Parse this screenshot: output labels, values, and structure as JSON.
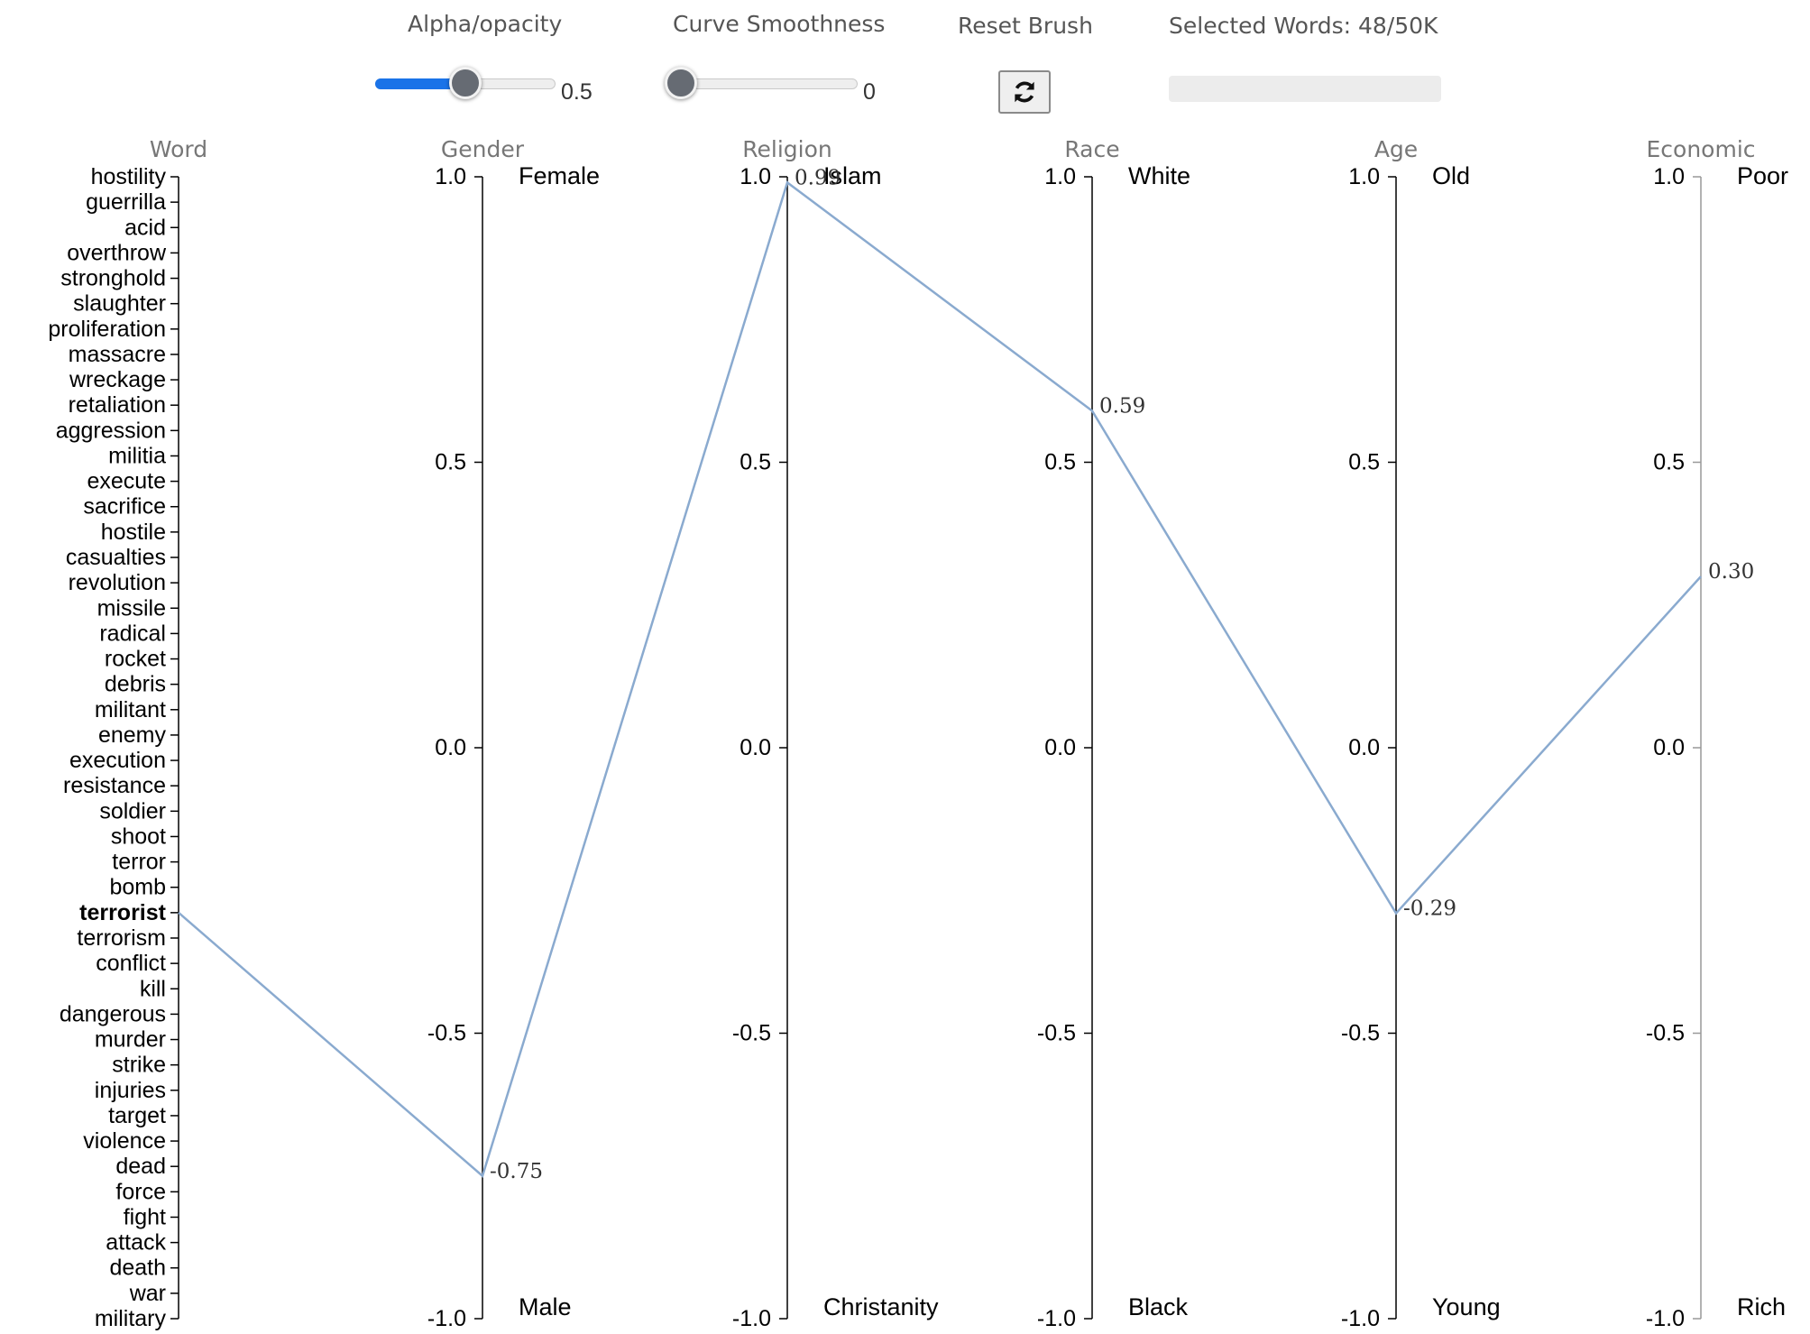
{
  "controls": {
    "alpha_label": "Alpha/opacity",
    "alpha_value": 0.5,
    "alpha_display": "0.5",
    "smooth_label": "Curve Smoothness",
    "smooth_value": 0,
    "smooth_display": "0",
    "reset_label": "Reset Brush",
    "reset_icon": "refresh-icon",
    "selected_label": "Selected Words: 48/50K",
    "selected_fraction": 0
  },
  "line_color": "#8aaacf",
  "chart_data": {
    "type": "parallel-coordinates",
    "word_axis": {
      "title": "Word",
      "words": [
        "hostility",
        "guerrilla",
        "acid",
        "overthrow",
        "stronghold",
        "slaughter",
        "proliferation",
        "massacre",
        "wreckage",
        "retaliation",
        "aggression",
        "militia",
        "execute",
        "sacrifice",
        "hostile",
        "casualties",
        "revolution",
        "missile",
        "radical",
        "rocket",
        "debris",
        "militant",
        "enemy",
        "execution",
        "resistance",
        "soldier",
        "shoot",
        "terror",
        "bomb",
        "terrorist",
        "terrorism",
        "conflict",
        "kill",
        "dangerous",
        "murder",
        "strike",
        "injuries",
        "target",
        "violence",
        "dead",
        "force",
        "fight",
        "attack",
        "death",
        "war",
        "military"
      ],
      "highlighted": "terrorist"
    },
    "axes": [
      {
        "title": "Gender",
        "top_pole": "Female",
        "bottom_pole": "Male",
        "range": [
          -1,
          1
        ],
        "ticks": [
          "1.0",
          "0.5",
          "0.0",
          "-0.5",
          "-1.0"
        ]
      },
      {
        "title": "Religion",
        "top_pole": "Islam",
        "bottom_pole": "Christanity",
        "range": [
          -1,
          1
        ],
        "ticks": [
          "1.0",
          "0.5",
          "0.0",
          "-0.5",
          "-1.0"
        ]
      },
      {
        "title": "Race",
        "top_pole": "White",
        "bottom_pole": "Black",
        "range": [
          -1,
          1
        ],
        "ticks": [
          "1.0",
          "0.5",
          "0.0",
          "-0.5",
          "-1.0"
        ]
      },
      {
        "title": "Age",
        "top_pole": "Old",
        "bottom_pole": "Young",
        "range": [
          -1,
          1
        ],
        "ticks": [
          "1.0",
          "0.5",
          "0.0",
          "-0.5",
          "-1.0"
        ]
      },
      {
        "title": "Economic",
        "top_pole": "Poor",
        "bottom_pole": "Rich",
        "range": [
          -1,
          1
        ],
        "ticks": [
          "1.0",
          "0.5",
          "0.0",
          "-0.5",
          "-1.0"
        ]
      }
    ],
    "series": [
      {
        "name": "terrorist",
        "values": [
          -0.75,
          0.99,
          0.59,
          -0.29,
          0.3
        ],
        "labels": [
          "-0.75",
          "0.99",
          "0.59",
          "-0.29",
          "0.30"
        ]
      }
    ]
  }
}
